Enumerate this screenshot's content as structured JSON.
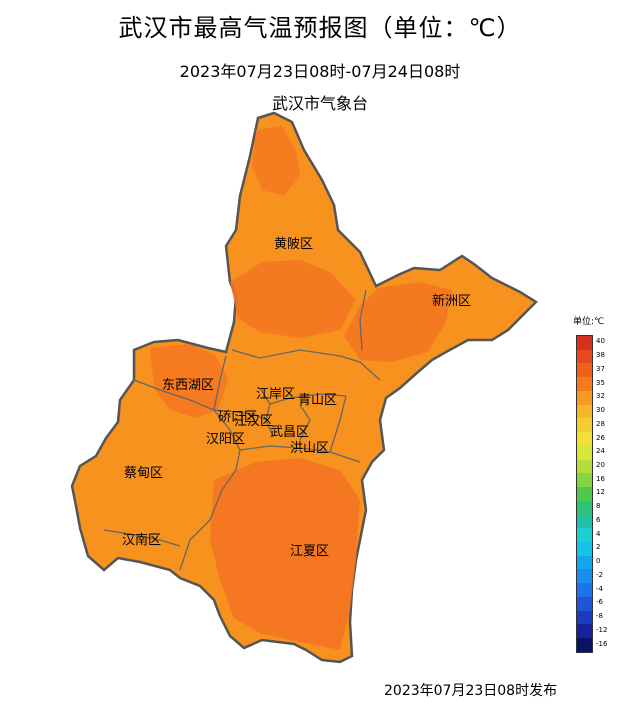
{
  "header": {
    "title": "武汉市最高气温预报图（单位：℃）",
    "subtitle": "2023年07月23日08时-07月24日08时",
    "org": "武汉市气象台"
  },
  "footer": {
    "issued": "2023年07月23日08时发布"
  },
  "districts": [
    {
      "name": "黄陂区"
    },
    {
      "name": "新洲区"
    },
    {
      "name": "东西湖区"
    },
    {
      "name": "江岸区"
    },
    {
      "name": "青山区"
    },
    {
      "name": "硚口区"
    },
    {
      "name": "江汉区"
    },
    {
      "name": "汉阳区"
    },
    {
      "name": "武昌区"
    },
    {
      "name": "洪山区"
    },
    {
      "name": "蔡甸区"
    },
    {
      "name": "汉南区"
    },
    {
      "name": "江夏区"
    }
  ],
  "legend": {
    "unit": "单位:℃",
    "items": [
      {
        "label": "40",
        "color": "#d7301f"
      },
      {
        "label": "38",
        "color": "#e8481f"
      },
      {
        "label": "37",
        "color": "#f0601a"
      },
      {
        "label": "35",
        "color": "#f57a18"
      },
      {
        "label": "32",
        "color": "#f89b25"
      },
      {
        "label": "30",
        "color": "#f8b62b"
      },
      {
        "label": "28",
        "color": "#f5cd30"
      },
      {
        "label": "26",
        "color": "#f0e037"
      },
      {
        "label": "24",
        "color": "#d6e63a"
      },
      {
        "label": "20",
        "color": "#b4dd3c"
      },
      {
        "label": "16",
        "color": "#86d43f"
      },
      {
        "label": "12",
        "color": "#4fc94a"
      },
      {
        "label": "8",
        "color": "#2ec27a"
      },
      {
        "label": "6",
        "color": "#20c3a8"
      },
      {
        "label": "4",
        "color": "#1bd0d2"
      },
      {
        "label": "2",
        "color": "#16c4e8"
      },
      {
        "label": "0",
        "color": "#12a8ee"
      },
      {
        "label": "-2",
        "color": "#1a8ef0"
      },
      {
        "label": "-4",
        "color": "#1f72e8"
      },
      {
        "label": "-6",
        "color": "#1f56d8"
      },
      {
        "label": "-8",
        "color": "#1c3cbf"
      },
      {
        "label": "-12",
        "color": "#14229c"
      },
      {
        "label": "-16",
        "color": "#0c1265"
      }
    ]
  },
  "colors": {
    "map_base": "#f7921f",
    "map_hot": "#f57421",
    "boundary": "#555555"
  }
}
